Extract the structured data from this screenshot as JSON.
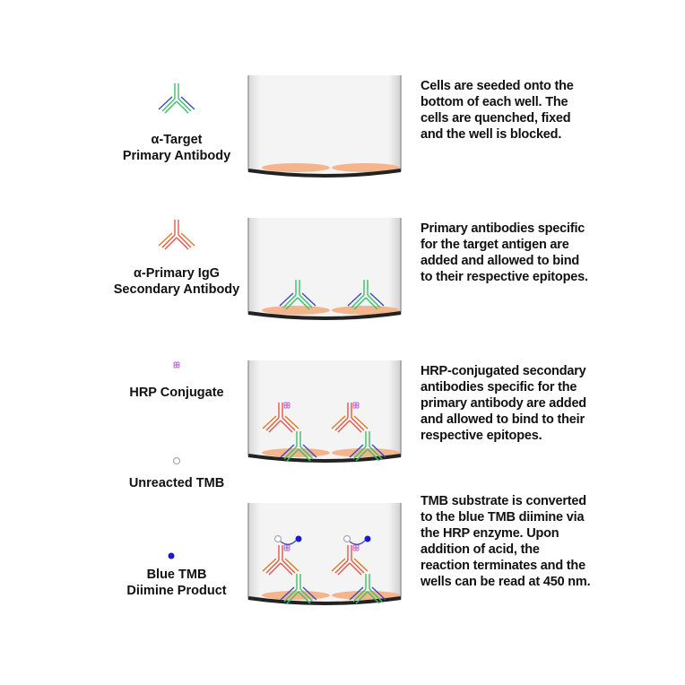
{
  "legend": [
    {
      "lines": [
        "α-Target",
        "Primary Antibody"
      ],
      "icon": "primary-antibody-icon"
    },
    {
      "lines": [
        "α-Primary IgG",
        "Secondary Antibody"
      ],
      "icon": "secondary-antibody-icon"
    },
    {
      "lines": [
        "HRP Conjugate"
      ],
      "icon": "hrp-icon"
    },
    {
      "lines": [
        "Unreacted TMB"
      ],
      "icon": "tmb-icon"
    },
    {
      "lines": [
        "Blue TMB",
        "Diimine Product"
      ],
      "icon": "blue-tmb-icon"
    }
  ],
  "steps": [
    {
      "text": "Cells are seeded onto the bottom of each well. The cells are quenched, fixed and the well is blocked."
    },
    {
      "text": "Primary antibodies specific for the target antigen are added and allowed to bind to their respective epitopes."
    },
    {
      "text": "HRP-conjugated secondary antibodies specific for the primary antibody are added and allowed to bind to their respective epitopes."
    },
    {
      "text": "TMB substrate is converted to the blue TMB diimine via the HRP enzyme. Upon addition of acid, the reaction terminates and the wells can be read at 450 nm."
    }
  ],
  "colors": {
    "primary_heavy": "#3cc06a",
    "primary_light": "#3a4bc0",
    "secondary_heavy": "#e05a4a",
    "secondary_light": "#e07a20",
    "hrp": "#c060d0",
    "blue_tmb": "#1a1acc",
    "cell": "#f4b48c",
    "well_bottom": "#222222"
  }
}
